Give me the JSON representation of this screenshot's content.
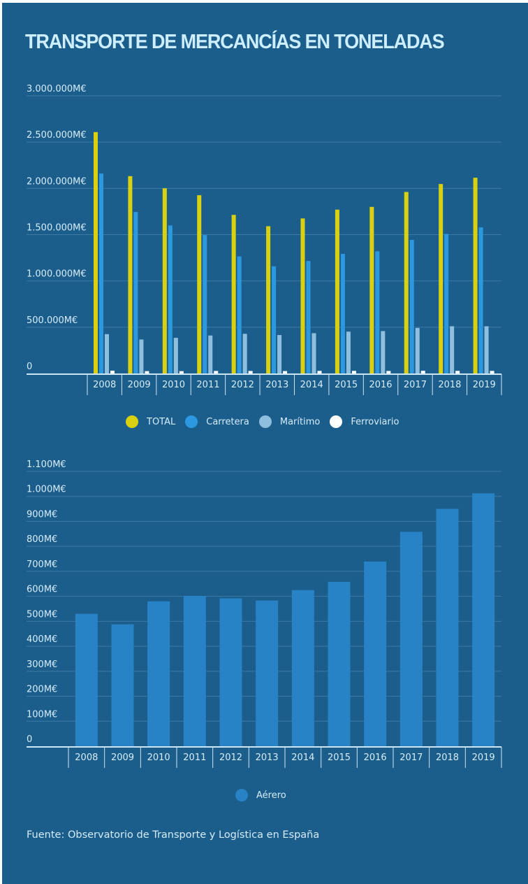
{
  "title": "TRANSPORTE DE MERCANCÍAS EN TONELADAS",
  "source": "Fuente: Observatorio de Transporte y Logística en España",
  "colors": {
    "background": "#1c5e8b",
    "title": "#cdeeff",
    "total": "#d8d010",
    "carretera": "#2b98e0",
    "maritimo": "#8fbfdf",
    "ferroviario": "#ffffff",
    "aereo": "#2782c6"
  },
  "chart_data": [
    {
      "type": "bar",
      "title": "",
      "xlabel": "",
      "ylabel": "",
      "categories": [
        "2008",
        "2009",
        "2010",
        "2011",
        "2012",
        "2013",
        "2014",
        "2015",
        "2016",
        "2017",
        "2018",
        "2019"
      ],
      "ylim": [
        0,
        3000000
      ],
      "yticks": [
        0,
        500000,
        1000000,
        1500000,
        2000000,
        2500000,
        3000000
      ],
      "ytick_labels": [
        "0",
        "500.000M€",
        "1.000.000M€",
        "1.500.000M€",
        "2.000.000M€",
        "2.500.000M€",
        "3.000.000M€"
      ],
      "grid": true,
      "legend_position": "bottom-center",
      "series": [
        {
          "name": "TOTAL",
          "color_key": "total",
          "values": [
            2608000,
            2132000,
            2001000,
            1926000,
            1714000,
            1591000,
            1675000,
            1770000,
            1800000,
            1961000,
            2047000,
            2115000
          ]
        },
        {
          "name": "Carretera",
          "color_key": "carretera",
          "values": [
            2160000,
            1745000,
            1599000,
            1495000,
            1264000,
            1158000,
            1216000,
            1292000,
            1320000,
            1443000,
            1508000,
            1579000
          ]
        },
        {
          "name": "Marítimo",
          "color_key": "maritimo",
          "values": [
            425000,
            367000,
            385000,
            410000,
            428000,
            415000,
            435000,
            452000,
            458000,
            492000,
            510000,
            510000
          ]
        },
        {
          "name": "Ferroviario",
          "color_key": "ferroviario",
          "values": [
            30000,
            25000,
            25000,
            27000,
            27000,
            26000,
            28000,
            28000,
            27000,
            29000,
            28000,
            28000
          ]
        }
      ]
    },
    {
      "type": "bar",
      "title": "",
      "xlabel": "",
      "ylabel": "",
      "categories": [
        "2008",
        "2009",
        "2010",
        "2011",
        "2012",
        "2013",
        "2014",
        "2015",
        "2016",
        "2017",
        "2018",
        "2019"
      ],
      "ylim": [
        0,
        1100
      ],
      "yticks": [
        0,
        100,
        200,
        300,
        400,
        500,
        600,
        700,
        800,
        900,
        1000,
        1100
      ],
      "ytick_labels": [
        "0",
        "100M€",
        "200M€",
        "300M€",
        "400M€",
        "500M€",
        "600M€",
        "700M€",
        "800M€",
        "900M€",
        "1.000M€",
        "1.100M€"
      ],
      "grid": true,
      "legend_position": "bottom-center",
      "series": [
        {
          "name": "Aérero",
          "color_key": "aereo",
          "values": [
            530,
            488,
            580,
            602,
            592,
            583,
            625,
            658,
            739,
            858,
            950,
            1012
          ]
        }
      ]
    }
  ]
}
